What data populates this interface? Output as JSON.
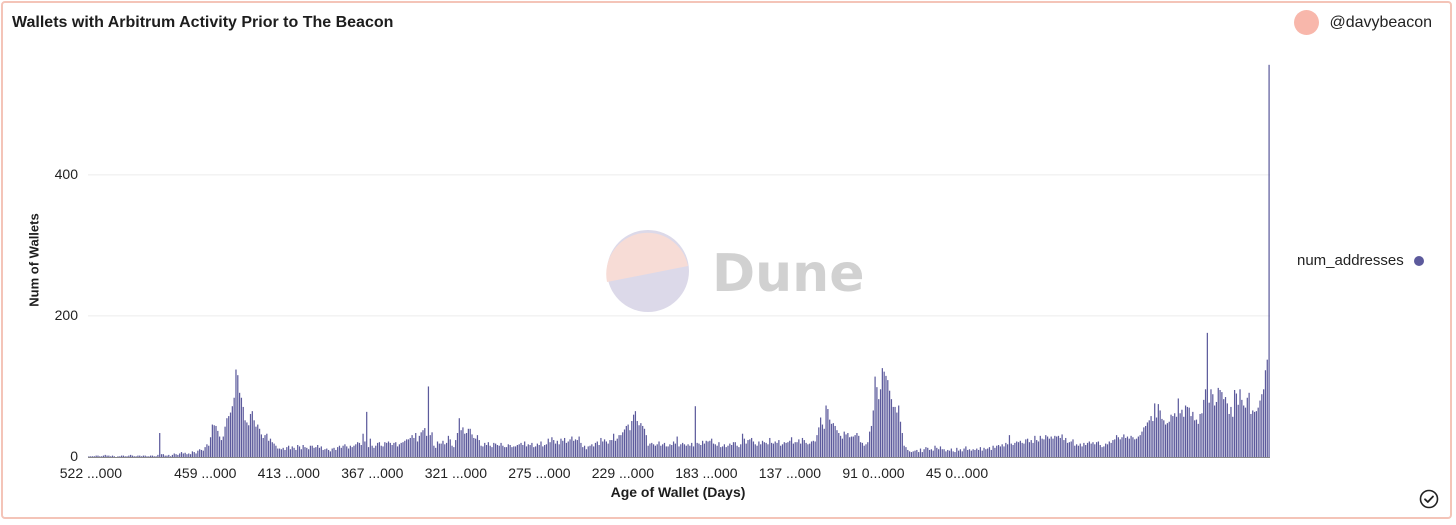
{
  "header": {
    "title": "Wallets with Arbitrum Activity Prior to The Beacon",
    "author": "@davybeacon"
  },
  "watermark": {
    "text": "Dune"
  },
  "legend": {
    "label": "num_addresses",
    "color": "#5c5a9c"
  },
  "chart_data": {
    "type": "bar",
    "title": "Wallets with Arbitrum Activity Prior to The Beacon",
    "xlabel": "Age of Wallet (Days)",
    "ylabel": "Num of Wallets",
    "ylim": [
      0,
      560
    ],
    "yticks": [
      0,
      200,
      400
    ],
    "xtick_labels": [
      "522 ...000",
      "459 ...000",
      "413 ...000",
      "367 ...000",
      "321 ...000",
      "275 ...000",
      "229 ...000",
      "183 ...000",
      "137 ...000",
      "91 0...000",
      "45 0...000"
    ],
    "x_start": 522,
    "grid": true,
    "legend_position": "right",
    "series": [
      {
        "name": "num_addresses",
        "color": "#5c5a9c",
        "values": [
          1,
          1,
          1,
          1,
          2,
          2,
          1,
          1,
          2,
          3,
          2,
          2,
          1,
          2,
          1,
          0,
          1,
          1,
          2,
          2,
          1,
          1,
          2,
          3,
          2,
          1,
          1,
          2,
          2,
          1,
          2,
          2,
          1,
          1,
          2,
          2,
          1,
          1,
          3,
          34,
          4,
          4,
          2,
          2,
          3,
          1,
          3,
          5,
          4,
          3,
          5,
          7,
          5,
          6,
          4,
          5,
          4,
          8,
          7,
          5,
          9,
          11,
          10,
          9,
          14,
          18,
          16,
          28,
          46,
          45,
          44,
          37,
          29,
          24,
          29,
          43,
          55,
          58,
          63,
          72,
          84,
          124,
          116,
          91,
          84,
          71,
          52,
          49,
          45,
          61,
          65,
          52,
          43,
          46,
          40,
          32,
          27,
          31,
          33,
          23,
          26,
          21,
          19,
          16,
          12,
          12,
          11,
          13,
          10,
          14,
          16,
          11,
          15,
          13,
          10,
          17,
          15,
          11,
          17,
          14,
          13,
          11,
          16,
          16,
          13,
          14,
          17,
          13,
          15,
          10,
          11,
          12,
          10,
          8,
          12,
          13,
          10,
          14,
          16,
          13,
          16,
          18,
          15,
          12,
          16,
          14,
          16,
          18,
          21,
          20,
          17,
          33,
          22,
          64,
          14,
          26,
          16,
          13,
          16,
          20,
          21,
          16,
          15,
          21,
          20,
          22,
          20,
          17,
          20,
          21,
          15,
          18,
          20,
          21,
          23,
          25,
          25,
          27,
          31,
          27,
          34,
          22,
          30,
          35,
          38,
          41,
          30,
          100,
          31,
          35,
          16,
          13,
          22,
          19,
          19,
          23,
          18,
          20,
          30,
          25,
          16,
          14,
          24,
          34,
          55,
          38,
          42,
          33,
          34,
          40,
          40,
          32,
          27,
          26,
          31,
          24,
          16,
          15,
          20,
          17,
          21,
          16,
          14,
          20,
          19,
          17,
          16,
          20,
          16,
          14,
          14,
          18,
          17,
          14,
          15,
          15,
          17,
          18,
          20,
          17,
          22,
          15,
          18,
          17,
          20,
          14,
          15,
          19,
          17,
          22,
          15,
          17,
          18,
          26,
          21,
          28,
          24,
          19,
          23,
          18,
          26,
          23,
          27,
          20,
          22,
          25,
          29,
          23,
          25,
          24,
          29,
          20,
          14,
          16,
          11,
          15,
          16,
          18,
          15,
          20,
          22,
          17,
          27,
          22,
          25,
          22,
          19,
          24,
          24,
          33,
          23,
          26,
          31,
          31,
          35,
          39,
          44,
          46,
          38,
          51,
          60,
          65,
          51,
          45,
          48,
          44,
          40,
          31,
          16,
          19,
          20,
          18,
          16,
          18,
          22,
          16,
          18,
          20,
          15,
          15,
          18,
          17,
          22,
          19,
          29,
          15,
          18,
          20,
          18,
          16,
          18,
          16,
          20,
          15,
          72,
          20,
          19,
          17,
          23,
          19,
          23,
          22,
          23,
          26,
          19,
          18,
          16,
          21,
          14,
          15,
          18,
          14,
          16,
          19,
          17,
          21,
          21,
          16,
          14,
          18,
          33,
          26,
          19,
          24,
          25,
          27,
          22,
          18,
          16,
          22,
          18,
          23,
          21,
          20,
          18,
          27,
          20,
          19,
          22,
          20,
          24,
          16,
          18,
          21,
          20,
          21,
          23,
          28,
          19,
          21,
          21,
          25,
          19,
          27,
          24,
          20,
          18,
          19,
          22,
          23,
          22,
          31,
          42,
          56,
          46,
          40,
          73,
          68,
          53,
          47,
          48,
          44,
          38,
          34,
          30,
          26,
          36,
          32,
          34,
          28,
          29,
          29,
          31,
          34,
          30,
          21,
          20,
          16,
          18,
          21,
          36,
          44,
          66,
          114,
          99,
          82,
          96,
          126,
          121,
          115,
          109,
          94,
          82,
          71,
          71,
          63,
          73,
          50,
          34,
          16,
          14,
          10,
          8,
          7,
          8,
          9,
          10,
          7,
          12,
          7,
          11,
          14,
          13,
          10,
          11,
          9,
          16,
          13,
          11,
          15,
          11,
          11,
          8,
          10,
          9,
          12,
          8,
          7,
          13,
          9,
          11,
          8,
          12,
          15,
          10,
          11,
          9,
          11,
          10,
          12,
          10,
          14,
          9,
          13,
          11,
          12,
          14,
          10,
          16,
          13,
          16,
          17,
          15,
          18,
          15,
          20,
          18,
          31,
          19,
          17,
          20,
          22,
          21,
          23,
          20,
          19,
          25,
          26,
          21,
          24,
          20,
          30,
          24,
          22,
          30,
          26,
          25,
          31,
          29,
          26,
          29,
          26,
          30,
          29,
          30,
          27,
          32,
          24,
          27,
          20,
          21,
          22,
          25,
          16,
          18,
          16,
          19,
          15,
          20,
          17,
          20,
          22,
          19,
          21,
          18,
          21,
          22,
          17,
          14,
          15,
          19,
          18,
          22,
          20,
          24,
          25,
          31,
          28,
          25,
          28,
          32,
          27,
          29,
          26,
          30,
          28,
          25,
          26,
          29,
          31,
          36,
          42,
          44,
          49,
          52,
          58,
          51,
          76,
          56,
          75,
          66,
          54,
          52,
          46,
          48,
          50,
          60,
          58,
          62,
          57,
          83,
          62,
          67,
          57,
          73,
          71,
          70,
          58,
          64,
          52,
          53,
          47,
          61,
          62,
          81,
          96,
          176,
          77,
          96,
          89,
          73,
          78,
          98,
          95,
          92,
          82,
          85,
          76,
          61,
          71,
          57,
          95,
          90,
          74,
          96,
          81,
          73,
          70,
          84,
          91,
          61,
          66,
          64,
          65,
          70,
          80,
          89,
          96,
          123,
          138,
          556
        ]
      }
    ]
  }
}
